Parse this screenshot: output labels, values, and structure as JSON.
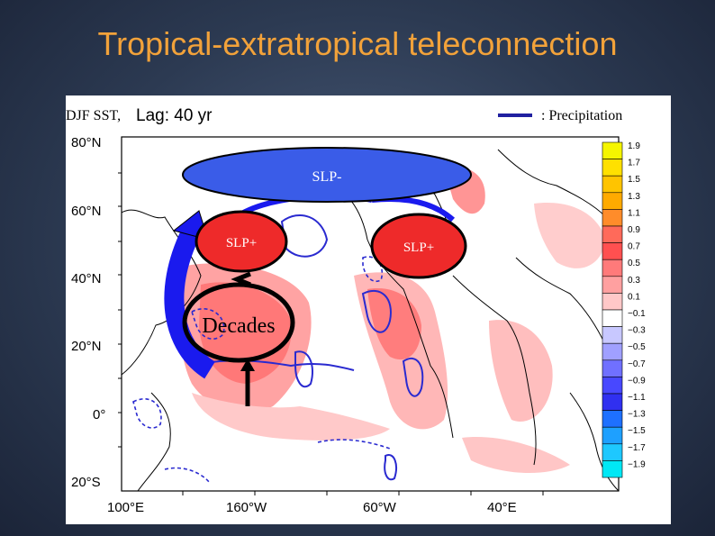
{
  "slide": {
    "title": "Tropical-extratropical teleconnection"
  },
  "figure": {
    "header_label": "DJF SST,",
    "lag_label": "Lag:  40 yr",
    "precip_legend_label": ": Precipitation",
    "lat_ticks": [
      "80°N",
      "60°N",
      "40°N",
      "20°N",
      "0°",
      "20°S"
    ],
    "lon_ticks": [
      "100°E",
      "160°W",
      "60°W",
      "40°E"
    ],
    "annotations": {
      "slp_minus": "SLP-",
      "slp_plus_west": "SLP+",
      "slp_plus_east": "SLP+",
      "decades": "Decades"
    },
    "colorbar": {
      "labels": [
        "1.9",
        "1.7",
        "1.5",
        "1.3",
        "1.1",
        "0.9",
        "0.7",
        "0.5",
        "0.3",
        "0.1",
        "−0.1",
        "−0.3",
        "−0.5",
        "−0.7",
        "−0.9",
        "−1.1",
        "−1.3",
        "−1.5",
        "−1.7",
        "−1.9"
      ],
      "colors": [
        "#f5f500",
        "#ffe000",
        "#ffc400",
        "#ffaa00",
        "#ff8c2a",
        "#ff6a5a",
        "#ff5050",
        "#ff7a7a",
        "#ffa0a0",
        "#ffc8c8",
        "#ffffff",
        "#c8c8ff",
        "#a0a0ff",
        "#7070ff",
        "#4848ff",
        "#3030f0",
        "#1e70ff",
        "#1ea0ff",
        "#1ec8ff",
        "#00e8f5"
      ]
    }
  }
}
